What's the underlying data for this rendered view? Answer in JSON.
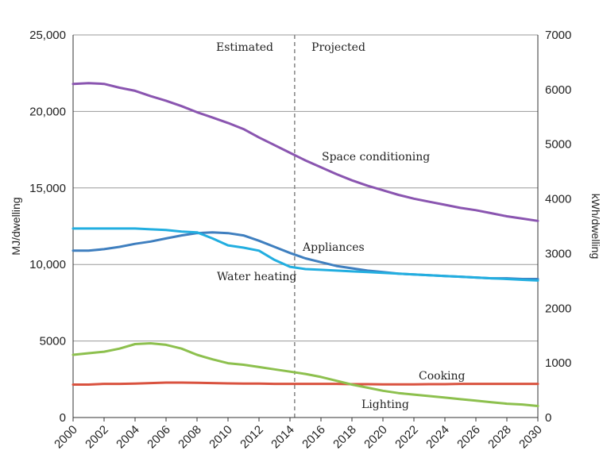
{
  "chart_data": {
    "type": "line",
    "x": [
      2000,
      2001,
      2002,
      2003,
      2004,
      2005,
      2006,
      2007,
      2008,
      2009,
      2010,
      2011,
      2012,
      2013,
      2014,
      2015,
      2016,
      2017,
      2018,
      2019,
      2020,
      2021,
      2022,
      2023,
      2024,
      2025,
      2026,
      2027,
      2028,
      2029,
      2030
    ],
    "x_tick_labels": [
      "2000",
      "2002",
      "2004",
      "2006",
      "2008",
      "2010",
      "2012",
      "2014",
      "2016",
      "2018",
      "2020",
      "2022",
      "2024",
      "2026",
      "2028",
      "2030"
    ],
    "xlim": [
      2000,
      2030
    ],
    "ylabel": "MJ/dwelling",
    "ylim": [
      0,
      25000
    ],
    "y_tick_labels": [
      "0",
      "5000",
      "10,000",
      "15,000",
      "20,000",
      "25,000"
    ],
    "y2label": "kWh/dwelling",
    "y2lim": [
      0,
      7000
    ],
    "y2_tick_labels": [
      "0",
      "1000",
      "2000",
      "3000",
      "4000",
      "5000",
      "6000",
      "7000"
    ],
    "grid": "horizontal",
    "divider": {
      "x": 2014.3,
      "left_label": "Estimated",
      "right_label": "Projected"
    },
    "series": [
      {
        "name": "Space conditioning",
        "color": "#8a55b0",
        "values": [
          21800,
          21850,
          21800,
          21550,
          21350,
          21000,
          20700,
          20350,
          19950,
          19600,
          19250,
          18850,
          18300,
          17800,
          17300,
          16800,
          16350,
          15900,
          15500,
          15150,
          14850,
          14550,
          14300,
          14100,
          13900,
          13700,
          13550,
          13350,
          13150,
          13000,
          12850
        ]
      },
      {
        "name": "Appliances",
        "color": "#3f7fbf",
        "values": [
          10900,
          10900,
          11000,
          11150,
          11350,
          11500,
          11700,
          11900,
          12050,
          12100,
          12050,
          11900,
          11550,
          11150,
          10750,
          10400,
          10150,
          9900,
          9750,
          9600,
          9500,
          9400,
          9350,
          9300,
          9250,
          9200,
          9150,
          9100,
          9100,
          9050,
          9050
        ]
      },
      {
        "name": "Water heating",
        "color": "#22aee0",
        "values": [
          12350,
          12350,
          12350,
          12350,
          12350,
          12300,
          12250,
          12150,
          12100,
          11700,
          11250,
          11100,
          10900,
          10300,
          9850,
          9700,
          9650,
          9600,
          9550,
          9500,
          9450,
          9400,
          9350,
          9300,
          9250,
          9200,
          9150,
          9100,
          9050,
          9000,
          8950
        ]
      },
      {
        "name": "Cooking",
        "color": "#d9523f",
        "values": [
          2150,
          2150,
          2200,
          2200,
          2220,
          2250,
          2280,
          2280,
          2270,
          2250,
          2230,
          2220,
          2220,
          2200,
          2200,
          2200,
          2200,
          2200,
          2180,
          2180,
          2170,
          2170,
          2170,
          2180,
          2180,
          2200,
          2200,
          2200,
          2200,
          2200,
          2200
        ]
      },
      {
        "name": "Lighting",
        "color": "#8dc04e",
        "values": [
          4100,
          4200,
          4300,
          4500,
          4800,
          4850,
          4750,
          4500,
          4100,
          3800,
          3550,
          3450,
          3300,
          3150,
          3000,
          2850,
          2650,
          2400,
          2150,
          1950,
          1750,
          1600,
          1500,
          1400,
          1300,
          1200,
          1100,
          1000,
          900,
          850,
          750
        ]
      }
    ]
  }
}
